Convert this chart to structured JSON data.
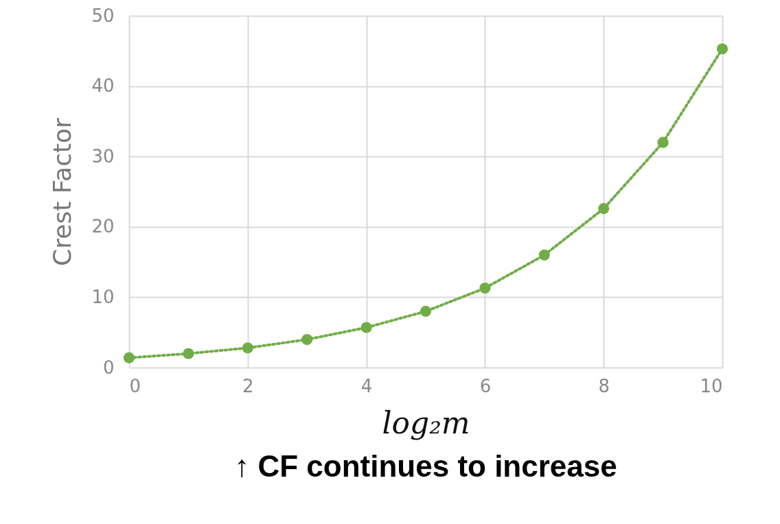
{
  "chart_data": {
    "type": "line",
    "xlabel": "log₂m",
    "ylabel": "Crest Factor",
    "annotations": [
      "↑ CF continues to increase"
    ],
    "x": [
      0,
      1,
      2,
      3,
      4,
      5,
      6,
      7,
      8,
      9,
      10
    ],
    "series": [
      {
        "color": "#70ad47",
        "values": [
          1.4,
          2,
          2.8,
          4,
          5.7,
          8,
          11.3,
          16,
          22.6,
          32,
          45.3
        ]
      }
    ],
    "xlim": [
      0,
      10
    ],
    "xticks": [
      0,
      2,
      4,
      6,
      8,
      10
    ],
    "ylim": [
      0,
      50
    ],
    "yticks": [
      0,
      10,
      20,
      30,
      40,
      50
    ],
    "grid": true,
    "marker": "circle",
    "line_style": "dotted"
  }
}
